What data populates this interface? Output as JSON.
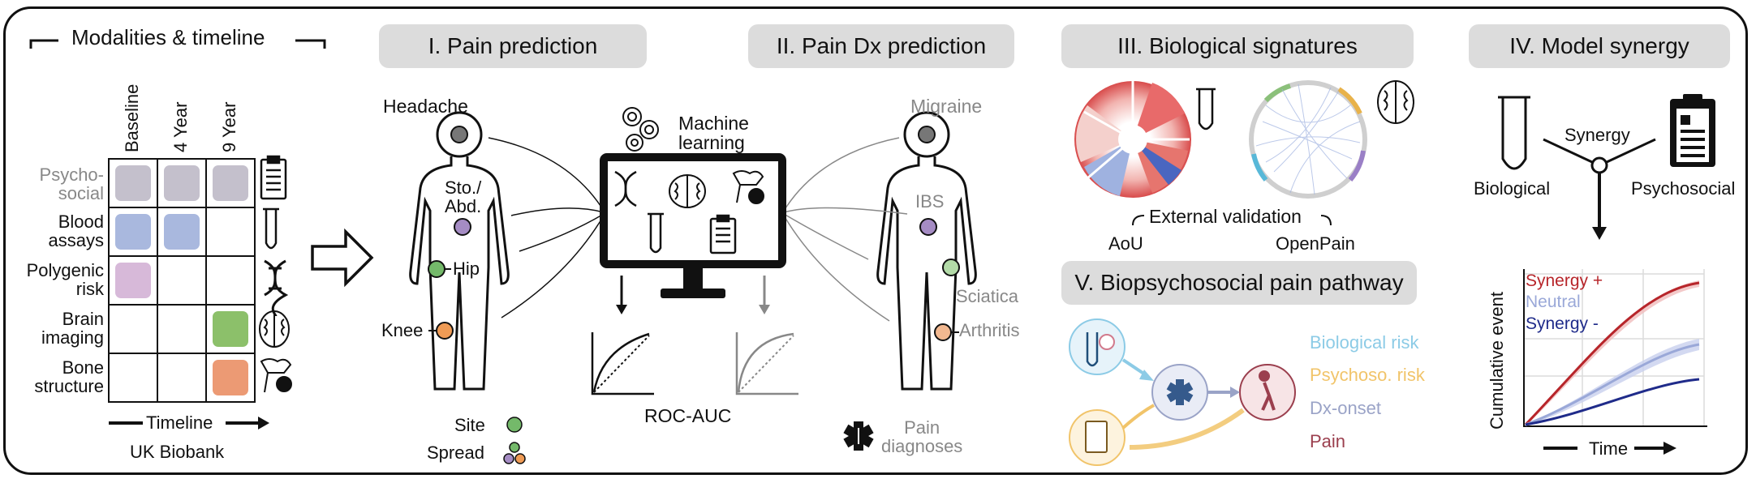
{
  "panel0": {
    "title": "Modalities & timeline",
    "cols": [
      "Baseline",
      "4 Year",
      "9 Year"
    ],
    "rows": [
      "Psycho-\nsocial",
      "Blood\nassays",
      "Polygenic\nrisk",
      "Brain\nimaging",
      "Bone\nstructure"
    ],
    "timeline": "Timeline",
    "dataset": "UK Biobank"
  },
  "panel1": {
    "title": "I. Pain prediction",
    "sites": {
      "headache": "Headache",
      "sto": "Sto./\nAbd.",
      "hip": "Hip",
      "knee": "Knee"
    },
    "legend_site": "Site",
    "legend_spread": "Spread",
    "ml": "Machine\nlearning",
    "roc": "ROC-AUC"
  },
  "panel2": {
    "title": "II. Pain Dx prediction",
    "dx": {
      "migraine": "Migraine",
      "ibs": "IBS",
      "sciatica": "Sciatica",
      "arthritis": "Arthritis"
    },
    "legend": "Pain\ndiagnoses"
  },
  "panel3": {
    "title": "III. Biological signatures",
    "ext": "External validation",
    "aou": "AoU",
    "openpain": "OpenPain"
  },
  "panel4": {
    "title": "IV. Model synergy",
    "synergy": "Synergy",
    "bio": "Biological",
    "psy": "Psychosocial",
    "legend": [
      "Synergy +",
      "Neutral",
      "Synergy -"
    ],
    "ylabel": "Cumulative event",
    "xlabel": "Time"
  },
  "panel5": {
    "title": "V. Biopsychosocial pain pathway",
    "legend": [
      "Biological risk",
      "Psychoso. risk",
      "Dx-onset",
      "Pain"
    ]
  },
  "colors": {
    "psycho": "#c4c0cc",
    "blood": "#a9b8de",
    "genetic": "#d7b9d9",
    "brain": "#8cc06a",
    "bone": "#ec9a74",
    "site_grey": "#888888",
    "site_purple": "#a58cc4",
    "site_green": "#74b96a",
    "site_orange": "#ef9b55",
    "bio": "#8ccbe6",
    "psy": "#f1c46a",
    "dx": "#9aa3c7",
    "pain": "#9b3f4e",
    "syn_plus": "#b7252a",
    "neutral": "#9aa8d8",
    "syn_minus": "#1f2b8a"
  }
}
